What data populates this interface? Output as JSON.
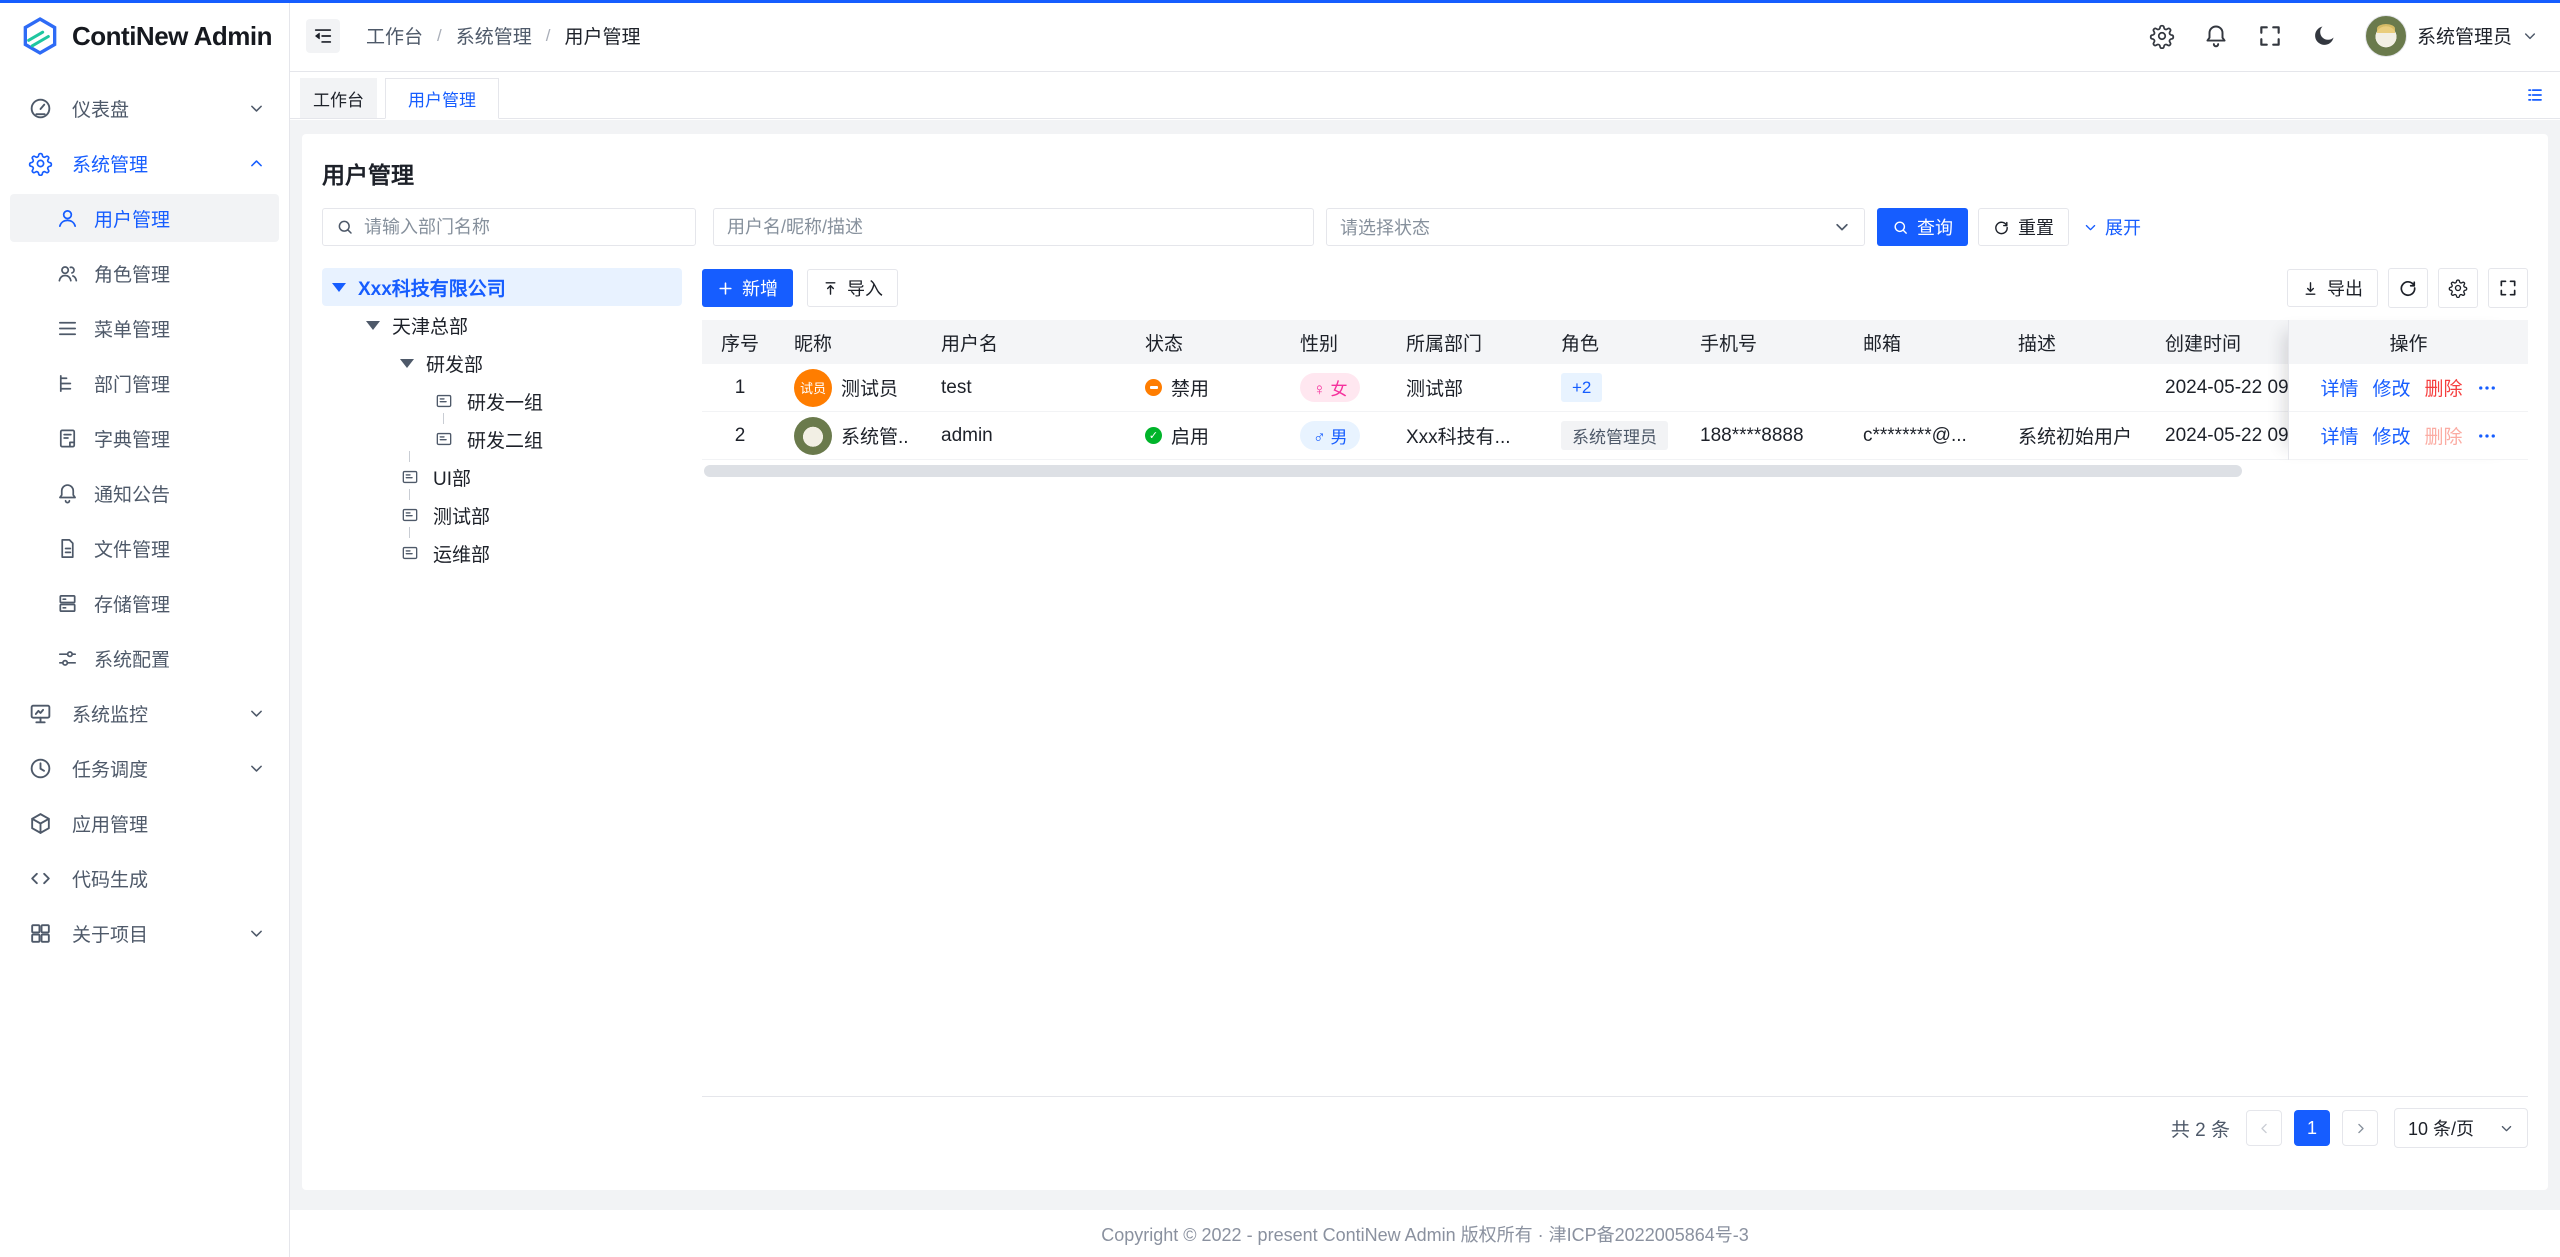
{
  "app": {
    "title": "ContiNew Admin"
  },
  "colors": {
    "primary": "#165dff",
    "success": "#00b42a",
    "warning": "#ff7d00",
    "danger": "#f53f3f",
    "female": "#f5319d",
    "page_bg": "#f2f3f5"
  },
  "header": {
    "breadcrumb": [
      "工作台",
      "系统管理",
      "用户管理"
    ],
    "actions": [
      {
        "icon": "gear"
      },
      {
        "icon": "bell"
      },
      {
        "icon": "fullscreen"
      },
      {
        "icon": "moon"
      }
    ],
    "user": {
      "name": "系统管理员"
    }
  },
  "tabs": {
    "items": [
      {
        "label": "工作台",
        "active": false
      },
      {
        "label": "用户管理",
        "active": true
      }
    ]
  },
  "sidebar": {
    "items": [
      {
        "icon": "dashboard",
        "label": "仪表盘",
        "chevron": "down"
      },
      {
        "icon": "gear",
        "label": "系统管理",
        "chevron": "up",
        "highlight": true,
        "children": [
          {
            "icon": "user",
            "label": "用户管理",
            "active": true
          },
          {
            "icon": "user-group",
            "label": "角色管理"
          },
          {
            "icon": "menu-lines",
            "label": "菜单管理"
          },
          {
            "icon": "dept-tree",
            "label": "部门管理"
          },
          {
            "icon": "dict-book",
            "label": "字典管理"
          },
          {
            "icon": "bell",
            "label": "通知公告"
          },
          {
            "icon": "file",
            "label": "文件管理"
          },
          {
            "icon": "storage",
            "label": "存储管理"
          },
          {
            "icon": "sliders",
            "label": "系统配置"
          }
        ]
      },
      {
        "icon": "monitor",
        "label": "系统监控",
        "chevron": "down"
      },
      {
        "icon": "clock",
        "label": "任务调度",
        "chevron": "down"
      },
      {
        "icon": "cube",
        "label": "应用管理"
      },
      {
        "icon": "code",
        "label": "代码生成"
      },
      {
        "icon": "grid",
        "label": "关于项目",
        "chevron": "down"
      }
    ]
  },
  "page": {
    "title": "用户管理",
    "filters": {
      "dept_placeholder": "请输入部门名称",
      "user_placeholder": "用户名/昵称/描述",
      "status_placeholder": "请选择状态",
      "query_label": "查询",
      "reset_label": "重置",
      "expand_label": "展开"
    },
    "tree": {
      "nodes": [
        {
          "label": "Xxx科技有限公司",
          "level": 0,
          "type": "branch",
          "selected": true
        },
        {
          "label": "天津总部",
          "level": 1,
          "type": "branch"
        },
        {
          "label": "研发部",
          "level": 2,
          "type": "branch"
        },
        {
          "label": "研发一组",
          "level": 3,
          "type": "leaf"
        },
        {
          "label": "研发二组",
          "level": 3,
          "type": "leaf"
        },
        {
          "label": "UI部",
          "level": 2,
          "type": "leaf"
        },
        {
          "label": "测试部",
          "level": 2,
          "type": "leaf"
        },
        {
          "label": "运维部",
          "level": 2,
          "type": "leaf"
        }
      ]
    },
    "toolbar": {
      "add_label": "新增",
      "import_label": "导入",
      "export_label": "导出",
      "icon_buttons": [
        {
          "icon": "refresh"
        },
        {
          "icon": "gear"
        },
        {
          "icon": "fullscreen"
        }
      ]
    },
    "table": {
      "columns": [
        "序号",
        "昵称",
        "用户名",
        "状态",
        "性别",
        "所属部门",
        "角色",
        "手机号",
        "邮箱",
        "描述",
        "创建时间",
        "操作"
      ],
      "rows": [
        {
          "index": "1",
          "avatar": {
            "kind": "text",
            "text": "试员",
            "color": "#ff7d00"
          },
          "nickname": "测试员",
          "username": "test",
          "status": {
            "label": "禁用",
            "state": "off"
          },
          "gender": {
            "symbol": "♀",
            "label": "女",
            "type": "female"
          },
          "dept": "测试部",
          "roles": [
            {
              "label": "+2",
              "style": "blue"
            }
          ],
          "phone": "",
          "email": "",
          "desc": "",
          "created": "2024-05-22 09",
          "actions": [
            {
              "label": "详情",
              "style": "link"
            },
            {
              "label": "修改",
              "style": "link"
            },
            {
              "label": "删除",
              "style": "danger"
            },
            {
              "icon": "more",
              "style": "link"
            }
          ]
        },
        {
          "index": "2",
          "avatar": {
            "kind": "photo"
          },
          "nickname": "系统管...",
          "username": "admin",
          "status": {
            "label": "启用",
            "state": "on"
          },
          "gender": {
            "symbol": "♂",
            "label": "男",
            "type": "male"
          },
          "dept": "Xxx科技有...",
          "roles": [
            {
              "label": "系统管理员",
              "style": "gray"
            }
          ],
          "phone": "188****8888",
          "email": "c********@...",
          "desc": "系统初始用户",
          "created": "2024-05-22 09",
          "actions": [
            {
              "label": "详情",
              "style": "link"
            },
            {
              "label": "修改",
              "style": "link"
            },
            {
              "label": "删除",
              "style": "danger-disabled"
            },
            {
              "icon": "more",
              "style": "link"
            }
          ]
        }
      ]
    },
    "pagination": {
      "total_label": "共 2 条",
      "page": "1",
      "page_size_label": "10 条/页"
    }
  },
  "footer": {
    "copyright": "Copyright © 2022 - present ContiNew Admin 版权所有 · 津ICP备2022005864号-3"
  }
}
